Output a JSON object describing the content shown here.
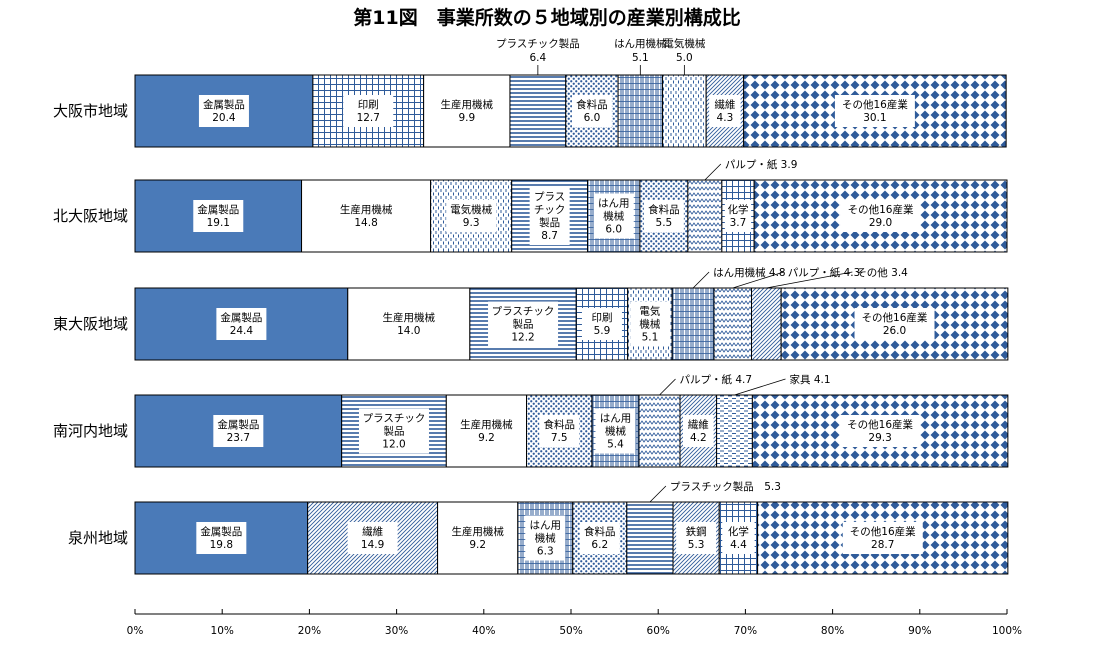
{
  "title": "第11図　事業所数の５地域別の産業別構成比",
  "chart_data": {
    "type": "bar",
    "orientation": "horizontal",
    "stacked": "percent",
    "xlim": [
      0,
      100
    ],
    "x_ticks": [
      "0%",
      "10%",
      "20%",
      "30%",
      "40%",
      "50%",
      "60%",
      "70%",
      "80%",
      "90%",
      "100%"
    ],
    "grid": false,
    "rows": [
      {
        "region": "大阪市地域",
        "segments": [
          {
            "name": "金属製品",
            "value": 20.4,
            "pattern": "solid",
            "display": "金属製品|20.4"
          },
          {
            "name": "印刷",
            "value": 12.7,
            "pattern": "grid",
            "display": "印刷|12.7"
          },
          {
            "name": "生産用機械",
            "value": 9.9,
            "pattern": "white",
            "display": "生産用機械|9.9"
          },
          {
            "name": "プラスチック製品",
            "value": 6.4,
            "pattern": "hlines",
            "callout": "プラスチック製品|6.4"
          },
          {
            "name": "食料品",
            "value": 6.0,
            "pattern": "dots",
            "display": "食料品|6.0"
          },
          {
            "name": "はん用機械",
            "value": 5.1,
            "pattern": "vgrid",
            "callout": "はん用機械|5.1"
          },
          {
            "name": "電気機械",
            "value": 5.0,
            "pattern": "vdash",
            "callout": "電気機械|5.0"
          },
          {
            "name": "繊維",
            "value": 4.3,
            "pattern": "diag",
            "display": "繊維|4.3"
          },
          {
            "name": "その他16産業",
            "value": 30.1,
            "pattern": "diamond",
            "display": "その他16産業|30.1"
          }
        ]
      },
      {
        "region": "北大阪地域",
        "segments": [
          {
            "name": "金属製品",
            "value": 19.1,
            "pattern": "solid",
            "display": "金属製品|19.1"
          },
          {
            "name": "生産用機械",
            "value": 14.8,
            "pattern": "white",
            "display": "生産用機械|14.8"
          },
          {
            "name": "電気機械",
            "value": 9.3,
            "pattern": "vdash",
            "display": "電気機械|9.3"
          },
          {
            "name": "プラスチック製品",
            "value": 8.7,
            "pattern": "hlines",
            "display": "プラス|チック|製品|8.7"
          },
          {
            "name": "はん用機械",
            "value": 6.0,
            "pattern": "vgrid",
            "display": "はん用|機械|6.0"
          },
          {
            "name": "食料品",
            "value": 5.5,
            "pattern": "dots",
            "display": "食料品|5.5"
          },
          {
            "name": "パルプ・紙",
            "value": 3.9,
            "pattern": "zigzag",
            "callout": "パルプ・紙 3.9"
          },
          {
            "name": "化学",
            "value": 3.7,
            "pattern": "grid",
            "display": "化学|3.7"
          },
          {
            "name": "その他16産業",
            "value": 29.0,
            "pattern": "diamond",
            "display": "その他16産業|29.0"
          }
        ]
      },
      {
        "region": "東大阪地域",
        "segments": [
          {
            "name": "金属製品",
            "value": 24.4,
            "pattern": "solid",
            "display": "金属製品|24.4"
          },
          {
            "name": "生産用機械",
            "value": 14.0,
            "pattern": "white",
            "display": "生産用機械|14.0"
          },
          {
            "name": "プラスチック製品",
            "value": 12.2,
            "pattern": "hlines",
            "display": "プラスチック|製品|12.2"
          },
          {
            "name": "印刷",
            "value": 5.9,
            "pattern": "grid",
            "display": "印刷|5.9"
          },
          {
            "name": "電気機械",
            "value": 5.1,
            "pattern": "vdash",
            "display": "電気|機械|5.1"
          },
          {
            "name": "はん用機械",
            "value": 4.8,
            "pattern": "vgrid",
            "callout": "はん用機械 4.8"
          },
          {
            "name": "パルプ・紙",
            "value": 4.3,
            "pattern": "zigzag",
            "callout": "パルプ・紙 4.3"
          },
          {
            "name": "その他",
            "value": 3.4,
            "pattern": "diag",
            "callout": "その他 3.4"
          },
          {
            "name": "その他16産業",
            "value": 26.0,
            "pattern": "diamond",
            "display": "その他16産業|26.0"
          }
        ]
      },
      {
        "region": "南河内地域",
        "segments": [
          {
            "name": "金属製品",
            "value": 23.7,
            "pattern": "solid",
            "display": "金属製品|23.7"
          },
          {
            "name": "プラスチック製品",
            "value": 12.0,
            "pattern": "hlines",
            "display": "プラスチック|製品|12.0"
          },
          {
            "name": "生産用機械",
            "value": 9.2,
            "pattern": "white",
            "display": "生産用機械|9.2"
          },
          {
            "name": "食料品",
            "value": 7.5,
            "pattern": "dots",
            "display": "食料品|7.5"
          },
          {
            "name": "はん用機械",
            "value": 5.4,
            "pattern": "vgrid",
            "display": "はん用|機械|5.4"
          },
          {
            "name": "パルプ・紙",
            "value": 4.7,
            "pattern": "zigzag",
            "callout": "パルプ・紙 4.7"
          },
          {
            "name": "繊維",
            "value": 4.2,
            "pattern": "diag",
            "display": "繊維|4.2"
          },
          {
            "name": "家具",
            "value": 4.1,
            "pattern": "hdash",
            "callout": "家具 4.1"
          },
          {
            "name": "その他16産業",
            "value": 29.3,
            "pattern": "diamond",
            "display": "その他16産業|29.3"
          }
        ]
      },
      {
        "region": "泉州地域",
        "segments": [
          {
            "name": "金属製品",
            "value": 19.8,
            "pattern": "solid",
            "display": "金属製品|19.8"
          },
          {
            "name": "繊維",
            "value": 14.9,
            "pattern": "diag",
            "display": "繊維|14.9"
          },
          {
            "name": "生産用機械",
            "value": 9.2,
            "pattern": "white",
            "display": "生産用機械|9.2"
          },
          {
            "name": "はん用機械",
            "value": 6.3,
            "pattern": "vgrid",
            "display": "はん用|機械|6.3"
          },
          {
            "name": "食料品",
            "value": 6.2,
            "pattern": "dots",
            "display": "食料品|6.2"
          },
          {
            "name": "プラスチック製品",
            "value": 5.3,
            "pattern": "hlines",
            "callout": "プラスチック製品　5.3"
          },
          {
            "name": "鉄鋼",
            "value": 5.3,
            "pattern": "diag",
            "display": "鉄鋼|5.3"
          },
          {
            "name": "化学",
            "value": 4.4,
            "pattern": "grid",
            "display": "化学|4.4"
          },
          {
            "name": "その他16産業",
            "value": 28.7,
            "pattern": "diamond",
            "display": "その他16産業|28.7"
          }
        ]
      }
    ]
  },
  "colors": {
    "accent": "#4a7ab8",
    "pattern": "#2f5b9a",
    "outline": "#000000"
  }
}
